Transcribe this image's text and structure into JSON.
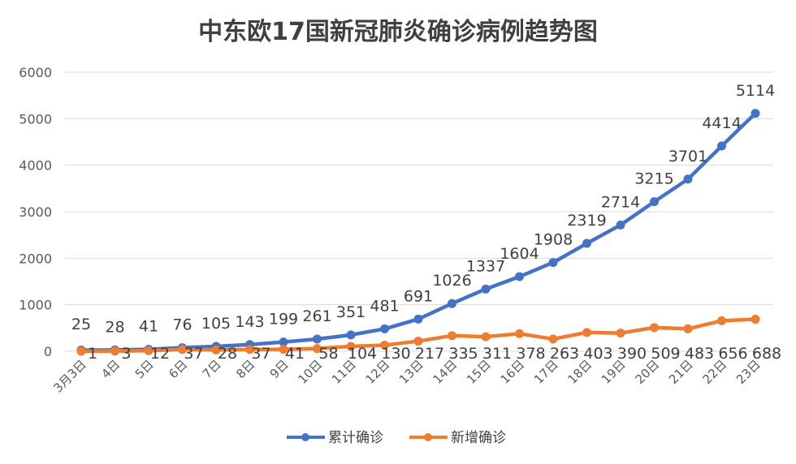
{
  "chart_data": {
    "type": "line",
    "title": "中东欧17国新冠肺炎确诊病例趋势图",
    "xlabel": "",
    "ylabel": "",
    "categories": [
      "3月3日",
      "4日",
      "5日",
      "6日",
      "7日",
      "8日",
      "9日",
      "10日",
      "11日",
      "12日",
      "13日",
      "14日",
      "15日",
      "16日",
      "17日",
      "18日",
      "19日",
      "20日",
      "21日",
      "22日",
      "23日"
    ],
    "ylim": [
      0,
      6000
    ],
    "yticks": [
      "0",
      "1000",
      "2000",
      "3000",
      "4000",
      "5000",
      "6000"
    ],
    "grid": true,
    "legend_position": "bottom",
    "series": [
      {
        "name": "累计确诊",
        "color": "#4472C4",
        "values": [
          25,
          28,
          41,
          76,
          105,
          143,
          199,
          261,
          351,
          481,
          691,
          1026,
          1337,
          1604,
          1908,
          2319,
          2714,
          3215,
          3701,
          4414,
          5114
        ]
      },
      {
        "name": "新增确诊",
        "color": "#ED7D31",
        "values": [
          1,
          3,
          12,
          37,
          28,
          37,
          41,
          58,
          104,
          130,
          217,
          335,
          311,
          378,
          263,
          403,
          390,
          509,
          483,
          656,
          688
        ],
        "labels": [
          "1",
          "3",
          "12",
          "37",
          "28",
          "37",
          "41",
          "58",
          "104",
          "130",
          "217",
          "335",
          "311",
          "378",
          "263",
          "403",
          "390",
          "509",
          "483",
          "656",
          "688"
        ]
      }
    ]
  }
}
